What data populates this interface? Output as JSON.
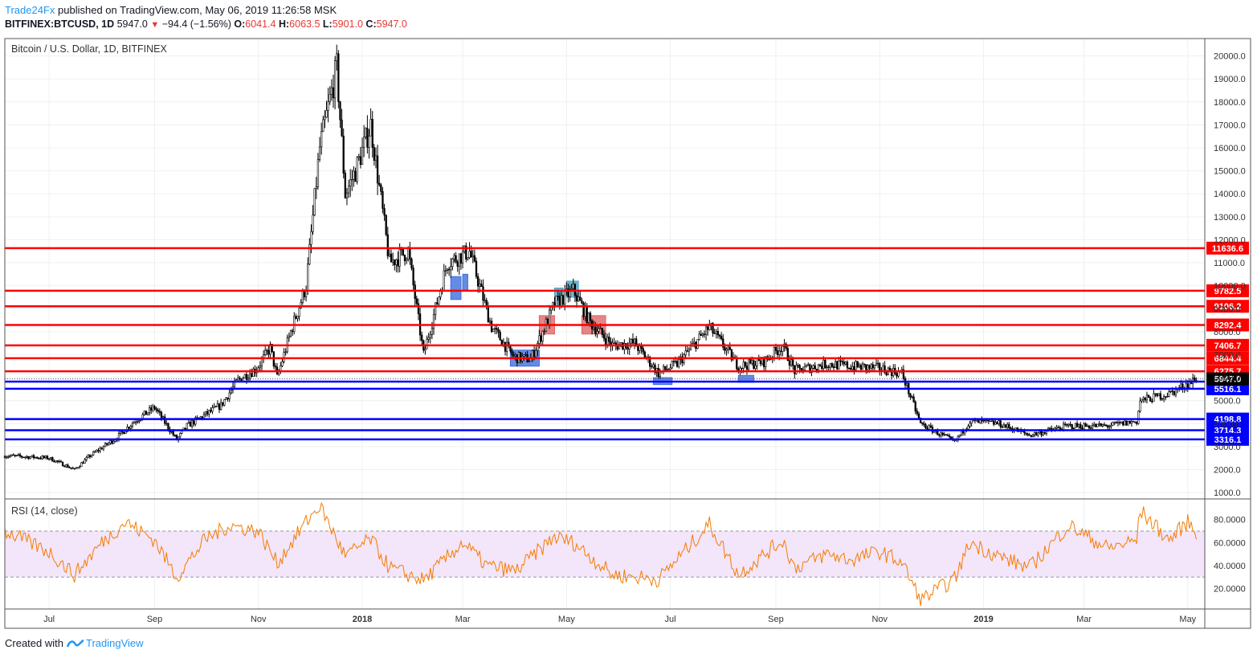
{
  "header": {
    "publisher": "Trade24Fx",
    "published_text": "published on TradingView.com, May 06, 2019 11:26:58 MSK",
    "symbol": "BITFINEX:BTCUSD, 1D",
    "last": "5947.0",
    "change": "−94.4 (−1.56%)",
    "open_label": "O:",
    "open": "6041.4",
    "high_label": "H:",
    "high": "6063.5",
    "low_label": "L:",
    "low": "5901.0",
    "close_label": "C:",
    "close": "5947.0"
  },
  "footer": {
    "created_with": "Created with",
    "brand": "TradingView"
  },
  "chart_data": [
    {
      "type": "candlestick",
      "title": "Bitcoin / U.S. Dollar, 1D, BITFINEX",
      "y_ticks": [
        1000,
        2000,
        3000,
        4000,
        5000,
        6000,
        7000,
        8000,
        9000,
        10000,
        11000,
        12000,
        13000,
        14000,
        15000,
        16000,
        17000,
        18000,
        19000,
        20000
      ],
      "y_tick_labels": [
        "1000.0",
        "2000.0",
        "3000.0",
        "4000.0",
        "5000.0",
        "6000.0",
        "7000.0",
        "8000.0",
        "9000.0",
        "10000.0",
        "11000.0",
        "12000.0",
        "13000.0",
        "14000.0",
        "15000.0",
        "16000.0",
        "17000.0",
        "18000.0",
        "19000.0",
        "20000.0"
      ],
      "x_tick_labels": [
        "Jul",
        "Sep",
        "Nov",
        "2018",
        "Mar",
        "May",
        "Jul",
        "Sep",
        "Nov",
        "2019",
        "Mar",
        "May"
      ],
      "x_tick_dates": [
        "2017-07-01",
        "2017-09-01",
        "2017-11-01",
        "2018-01-01",
        "2018-03-01",
        "2018-05-01",
        "2018-07-01",
        "2018-09-01",
        "2018-11-01",
        "2019-01-01",
        "2019-03-01",
        "2019-05-01"
      ],
      "x_range": [
        "2017-06-05",
        "2019-05-11"
      ],
      "price_path": [
        [
          "2017-06-05",
          2600
        ],
        [
          "2017-06-20",
          2550
        ],
        [
          "2017-07-01",
          2500
        ],
        [
          "2017-07-16",
          2000
        ],
        [
          "2017-07-25",
          2600
        ],
        [
          "2017-08-10",
          3400
        ],
        [
          "2017-08-20",
          4100
        ],
        [
          "2017-09-01",
          4700
        ],
        [
          "2017-09-14",
          3300
        ],
        [
          "2017-09-20",
          3900
        ],
        [
          "2017-10-01",
          4400
        ],
        [
          "2017-10-10",
          4800
        ],
        [
          "2017-10-20",
          5900
        ],
        [
          "2017-10-31",
          6400
        ],
        [
          "2017-11-08",
          7300
        ],
        [
          "2017-11-12",
          6000
        ],
        [
          "2017-11-20",
          8000
        ],
        [
          "2017-11-29",
          10000
        ],
        [
          "2017-12-07",
          16000
        ],
        [
          "2017-12-17",
          19500
        ],
        [
          "2017-12-22",
          14000
        ],
        [
          "2017-12-28",
          15000
        ],
        [
          "2018-01-06",
          17000
        ],
        [
          "2018-01-17",
          11000
        ],
        [
          "2018-01-28",
          11500
        ],
        [
          "2018-02-06",
          7000
        ],
        [
          "2018-02-20",
          11000
        ],
        [
          "2018-03-05",
          11500
        ],
        [
          "2018-03-18",
          8200
        ],
        [
          "2018-03-31",
          6900
        ],
        [
          "2018-04-10",
          6800
        ],
        [
          "2018-04-24",
          9200
        ],
        [
          "2018-05-05",
          9800
        ],
        [
          "2018-05-15",
          8400
        ],
        [
          "2018-05-28",
          7400
        ],
        [
          "2018-06-10",
          7500
        ],
        [
          "2018-06-24",
          6200
        ],
        [
          "2018-07-05",
          6600
        ],
        [
          "2018-07-24",
          8200
        ],
        [
          "2018-08-10",
          6500
        ],
        [
          "2018-08-25",
          6700
        ],
        [
          "2018-09-05",
          7400
        ],
        [
          "2018-09-12",
          6300
        ],
        [
          "2018-10-01",
          6600
        ],
        [
          "2018-10-15",
          6500
        ],
        [
          "2018-11-01",
          6400
        ],
        [
          "2018-11-14",
          6200
        ],
        [
          "2018-11-25",
          4000
        ],
        [
          "2018-12-15",
          3200
        ],
        [
          "2018-12-24",
          4100
        ],
        [
          "2019-01-10",
          4000
        ],
        [
          "2019-01-28",
          3500
        ],
        [
          "2019-02-20",
          3900
        ],
        [
          "2019-03-15",
          3900
        ],
        [
          "2019-04-01",
          4100
        ],
        [
          "2019-04-03",
          5000
        ],
        [
          "2019-04-20",
          5300
        ],
        [
          "2019-05-06",
          5947
        ]
      ],
      "resistance_levels": [
        11636.6,
        9782.5,
        9106.2,
        8292.4,
        7406.7,
        6844.4,
        6275.7
      ],
      "resistance_labels": [
        "11636.6",
        "9782.5",
        "9106.2",
        "8292.4",
        "7406.7",
        "6844.4",
        "6275.7"
      ],
      "support_levels": [
        5827.0,
        5516.1,
        4198.8,
        3714.3,
        3316.1
      ],
      "support_labels": [
        "5827.0",
        "5516.1",
        "4198.8",
        "3714.3",
        "3316.1"
      ],
      "last_price": 5947.0,
      "last_price_label": "5947.0",
      "resistance_color": "#ff0000",
      "support_color": "#0000ff",
      "highlight_boxes": [
        {
          "from": "2018-02-22",
          "to": "2018-02-28",
          "low": 9400,
          "high": 10400,
          "color": "#3f6fdc"
        },
        {
          "from": "2018-03-01",
          "to": "2018-03-04",
          "low": 9800,
          "high": 10500,
          "color": "#3f6fdc"
        },
        {
          "from": "2018-03-29",
          "to": "2018-04-15",
          "low": 6500,
          "high": 7200,
          "color": "#3f6fdc"
        },
        {
          "from": "2018-04-15",
          "to": "2018-04-24",
          "low": 7900,
          "high": 8700,
          "color": "#e06666"
        },
        {
          "from": "2018-04-24",
          "to": "2018-04-29",
          "low": 9100,
          "high": 9900,
          "color": "#4aa3c7"
        },
        {
          "from": "2018-05-01",
          "to": "2018-05-08",
          "low": 9500,
          "high": 10200,
          "color": "#4aa3c7"
        },
        {
          "from": "2018-05-10",
          "to": "2018-05-24",
          "low": 7900,
          "high": 8700,
          "color": "#e06666"
        },
        {
          "from": "2018-06-21",
          "to": "2018-07-02",
          "low": 5700,
          "high": 6000,
          "color": "#3f6fdc"
        },
        {
          "from": "2018-08-10",
          "to": "2018-08-19",
          "low": 5800,
          "high": 6100,
          "color": "#3f6fdc"
        }
      ]
    },
    {
      "type": "line",
      "title": "RSI (14, close)",
      "y_ticks": [
        20,
        40,
        60,
        80
      ],
      "y_tick_labels": [
        "20.0000",
        "40.0000",
        "60.0000",
        "80.0000"
      ],
      "upper_band": 70,
      "lower_band": 30,
      "line_color": "#f57c00",
      "band_fill": "#f3e5fa",
      "series": [
        [
          "2017-06-05",
          70
        ],
        [
          "2017-07-01",
          52
        ],
        [
          "2017-07-16",
          32
        ],
        [
          "2017-08-01",
          60
        ],
        [
          "2017-08-15",
          78
        ],
        [
          "2017-09-01",
          62
        ],
        [
          "2017-09-14",
          30
        ],
        [
          "2017-10-01",
          63
        ],
        [
          "2017-10-15",
          75
        ],
        [
          "2017-11-01",
          70
        ],
        [
          "2017-11-12",
          42
        ],
        [
          "2017-11-29",
          78
        ],
        [
          "2017-12-07",
          92
        ],
        [
          "2017-12-22",
          48
        ],
        [
          "2018-01-06",
          63
        ],
        [
          "2018-01-17",
          38
        ],
        [
          "2018-02-06",
          27
        ],
        [
          "2018-03-01",
          60
        ],
        [
          "2018-03-15",
          40
        ],
        [
          "2018-04-01",
          35
        ],
        [
          "2018-04-24",
          65
        ],
        [
          "2018-05-05",
          60
        ],
        [
          "2018-05-28",
          32
        ],
        [
          "2018-06-24",
          28
        ],
        [
          "2018-07-24",
          76
        ],
        [
          "2018-08-10",
          32
        ],
        [
          "2018-09-05",
          62
        ],
        [
          "2018-09-12",
          38
        ],
        [
          "2018-10-01",
          50
        ],
        [
          "2018-10-15",
          45
        ],
        [
          "2018-11-01",
          52
        ],
        [
          "2018-11-14",
          43
        ],
        [
          "2018-11-25",
          10
        ],
        [
          "2018-12-15",
          28
        ],
        [
          "2018-12-24",
          60
        ],
        [
          "2019-01-10",
          48
        ],
        [
          "2019-01-28",
          38
        ],
        [
          "2019-02-20",
          75
        ],
        [
          "2019-03-15",
          55
        ],
        [
          "2019-04-01",
          62
        ],
        [
          "2019-04-03",
          88
        ],
        [
          "2019-04-20",
          62
        ],
        [
          "2019-05-01",
          78
        ],
        [
          "2019-05-06",
          69
        ]
      ]
    }
  ]
}
